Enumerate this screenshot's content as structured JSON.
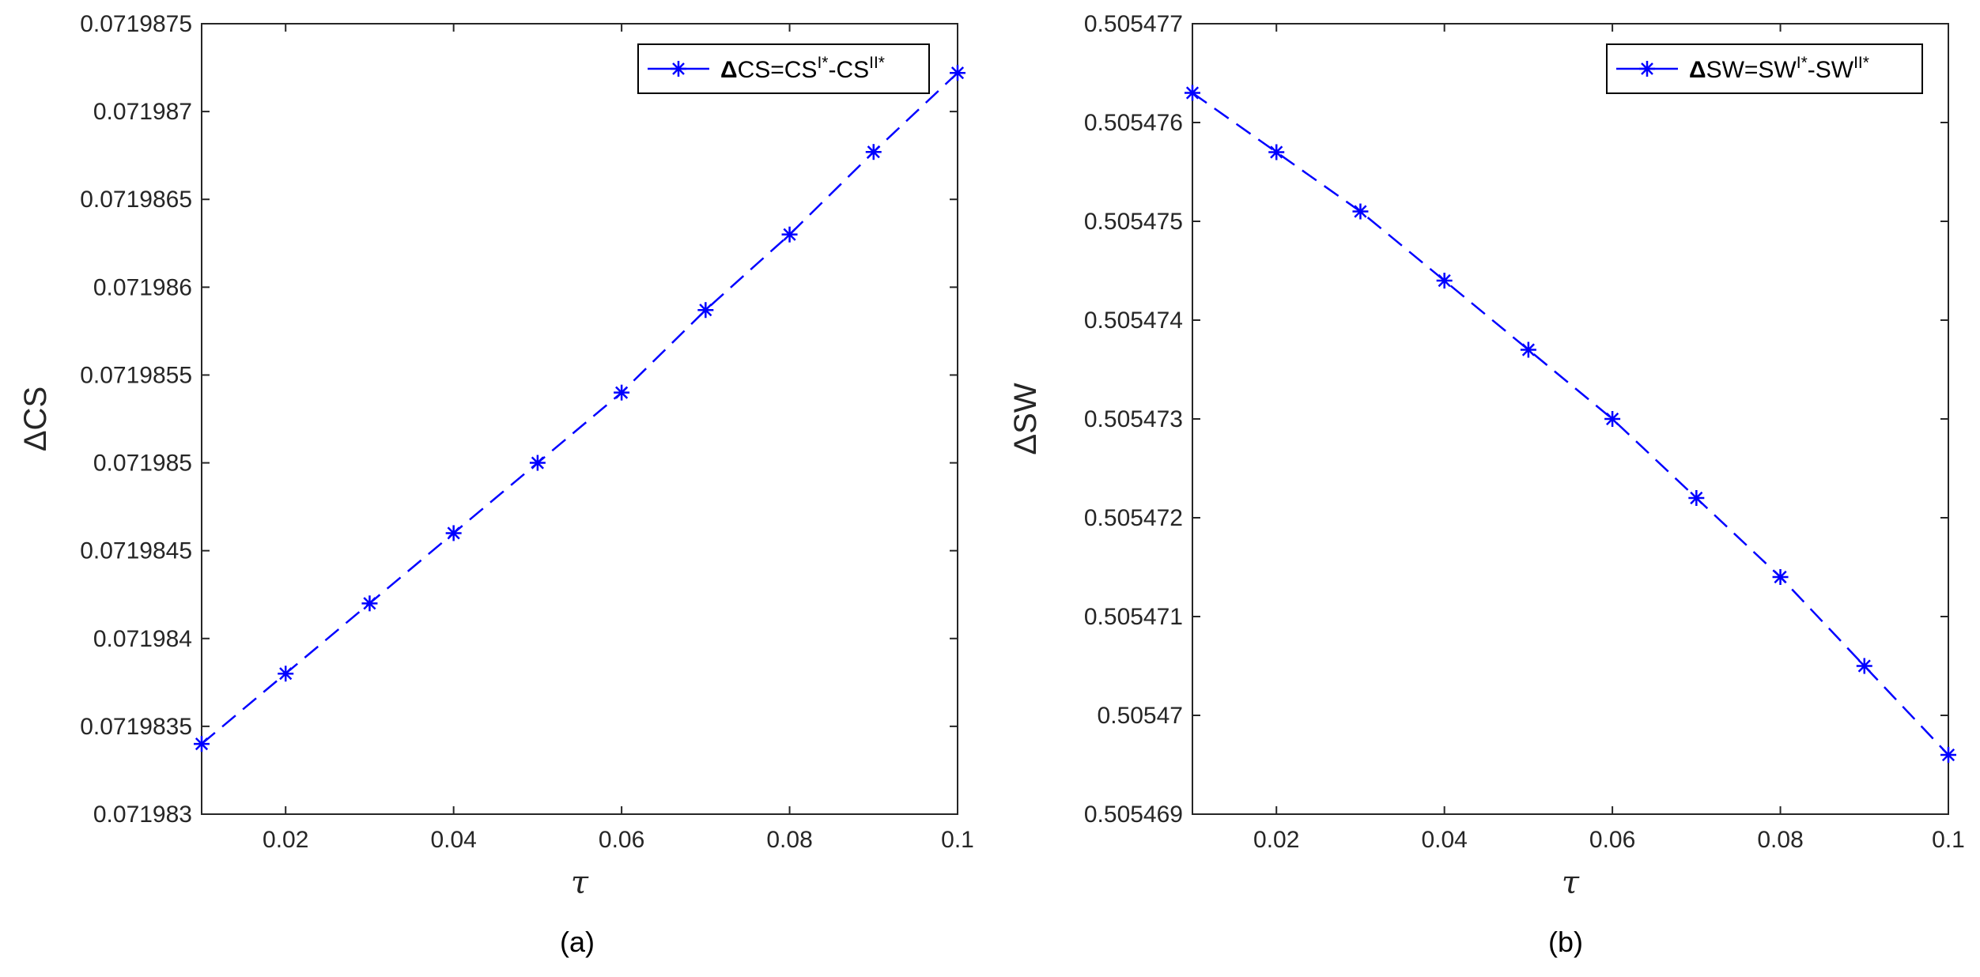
{
  "figure": {
    "left_caption": "(a)",
    "right_caption": "(b)"
  },
  "colors": {
    "series": "#0000ff",
    "axis": "#262626",
    "background": "#ffffff"
  },
  "chart_data": [
    {
      "type": "line",
      "panel": "(a)",
      "xlabel": "τ",
      "ylabel": "ΔCS",
      "xlim": [
        0.01,
        0.1
      ],
      "ylim": [
        0.071983,
        0.0719875
      ],
      "xticks": [
        0.02,
        0.04,
        0.06,
        0.08,
        0.1
      ],
      "xtick_labels": [
        "0.02",
        "0.04",
        "0.06",
        "0.08",
        "0.1"
      ],
      "yticks": [
        0.071983,
        0.0719835,
        0.071984,
        0.0719845,
        0.071985,
        0.0719855,
        0.071986,
        0.0719865,
        0.071987,
        0.0719875
      ],
      "ytick_labels": [
        "0.071983",
        "0.0719835",
        "0.071984",
        "0.0719845",
        "0.071985",
        "0.0719855",
        "0.071986",
        "0.0719865",
        "0.071987",
        "0.0719875"
      ],
      "grid": false,
      "legend_position": "top-right",
      "series": [
        {
          "name": "ΔCS=CS^{I*}-CS^{II*}",
          "legend_parts": {
            "delta": "Δ",
            "main": "CS=CS",
            "sup1": "I*",
            "mid": "-CS",
            "sup2": "II*"
          },
          "color": "#0000ff",
          "line_style": "dashed",
          "marker": "asterisk",
          "x": [
            0.01,
            0.02,
            0.03,
            0.04,
            0.05,
            0.06,
            0.07,
            0.08,
            0.09,
            0.1
          ],
          "y": [
            0.0719834,
            0.0719838,
            0.0719842,
            0.0719846,
            0.071985,
            0.0719854,
            0.07198587,
            0.0719863,
            0.07198677,
            0.07198722
          ]
        }
      ]
    },
    {
      "type": "line",
      "panel": "(b)",
      "xlabel": "τ",
      "ylabel": "ΔSW",
      "xlim": [
        0.01,
        0.1
      ],
      "ylim": [
        0.505469,
        0.505477
      ],
      "xticks": [
        0.02,
        0.04,
        0.06,
        0.08,
        0.1
      ],
      "xtick_labels": [
        "0.02",
        "0.04",
        "0.06",
        "0.08",
        "0.1"
      ],
      "yticks": [
        0.505469,
        0.50547,
        0.505471,
        0.505472,
        0.505473,
        0.505474,
        0.505475,
        0.505476,
        0.505477
      ],
      "ytick_labels": [
        "0.505469",
        "0.50547",
        "0.505471",
        "0.505472",
        "0.505473",
        "0.505474",
        "0.505475",
        "0.505476",
        "0.505477"
      ],
      "grid": false,
      "legend_position": "top-right",
      "series": [
        {
          "name": "ΔSW=SW^{I*}-SW^{II*}",
          "legend_parts": {
            "delta": "Δ",
            "main": "SW=SW",
            "sup1": "I*",
            "mid": "-SW",
            "sup2": "II*"
          },
          "color": "#0000ff",
          "line_style": "dashed",
          "marker": "asterisk",
          "x": [
            0.01,
            0.02,
            0.03,
            0.04,
            0.05,
            0.06,
            0.07,
            0.08,
            0.09,
            0.1
          ],
          "y": [
            0.5054763,
            0.5054757,
            0.5054751,
            0.5054744,
            0.5054737,
            0.505473,
            0.5054722,
            0.5054714,
            0.5054705,
            0.5054696
          ]
        }
      ]
    }
  ]
}
